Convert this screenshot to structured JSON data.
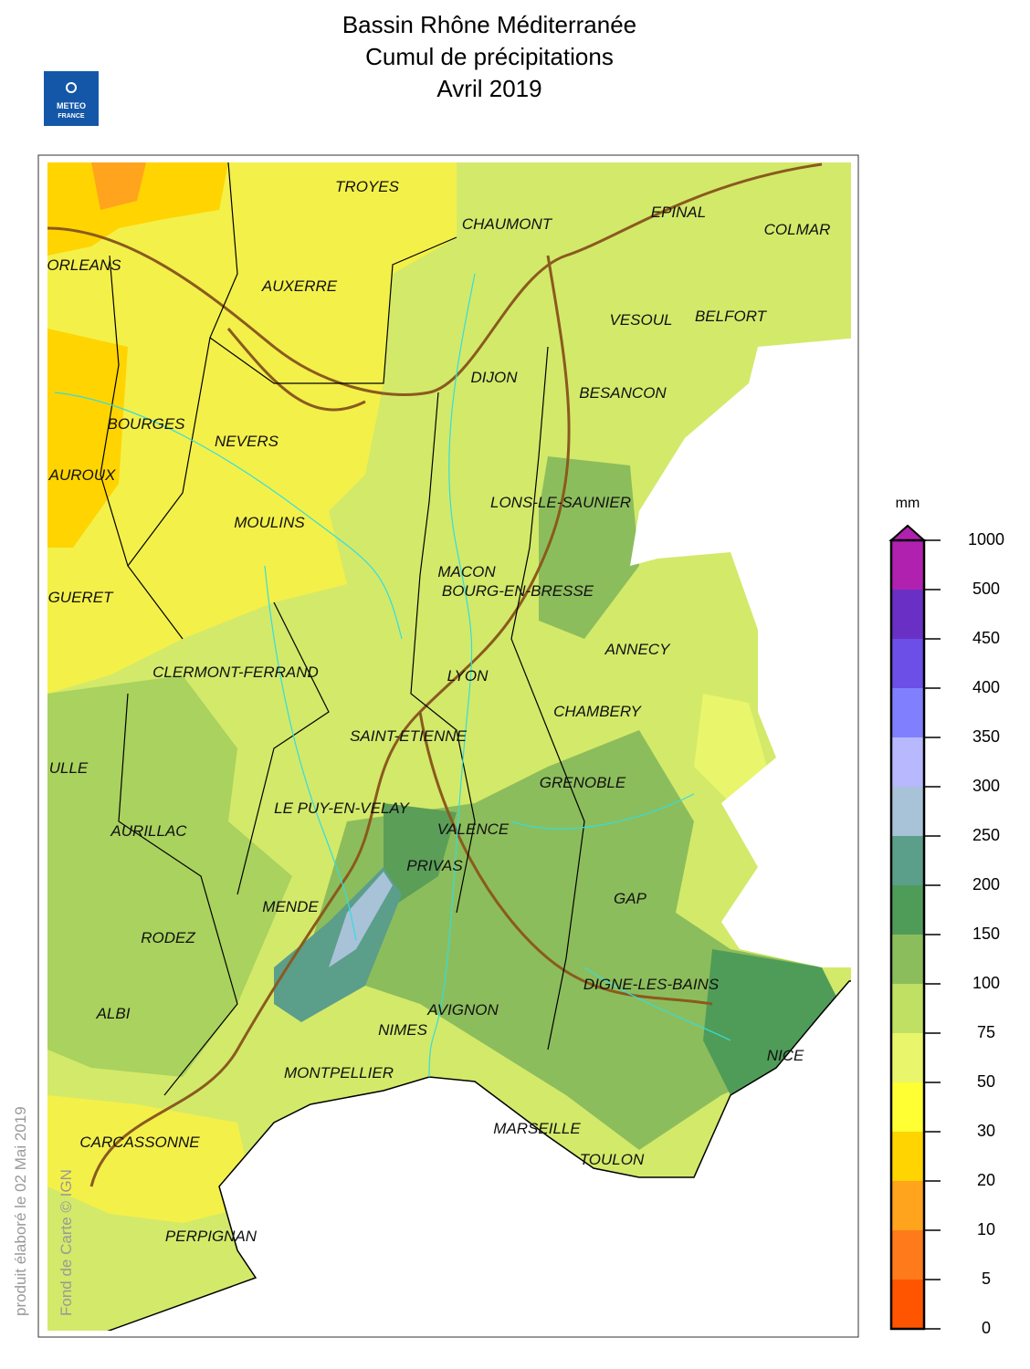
{
  "header": {
    "title_lines": [
      "Bassin Rhône Méditerranée",
      "Cumul de précipitations",
      "Avril 2019"
    ],
    "logo": [
      "METEO",
      "FRANCE"
    ]
  },
  "map": {
    "cities": [
      "TROYES",
      "CHAUMONT",
      "EPINAL",
      "COLMAR",
      "ORLEANS",
      "AUXERRE",
      "VESOUL",
      "BELFORT",
      "DIJON",
      "BESANCON",
      "BOURGES",
      "NEVERS",
      "AUROUX",
      "LONS-LE-SAUNIER",
      "MOULINS",
      "MACON",
      "BOURG-EN-BRESSE",
      "GUERET",
      "ANNECY",
      "CLERMONT-FERRAND",
      "LYON",
      "CHAMBERY",
      "SAINT-ETIENNE",
      "ULLE",
      "GRENOBLE",
      "LE PUY-EN-VELAY",
      "AURILLAC",
      "VALENCE",
      "PRIVAS",
      "GAP",
      "MENDE",
      "RODEZ",
      "DIGNE-LES-BAINS",
      "ALBI",
      "AVIGNON",
      "NIMES",
      "NICE",
      "MONTPELLIER",
      "MARSEILLE",
      "CARCASSONNE",
      "TOULON",
      "PERPIGNAN"
    ]
  },
  "legend": {
    "unit": "mm",
    "ticks": [
      0,
      5,
      10,
      20,
      30,
      50,
      75,
      100,
      150,
      200,
      250,
      300,
      350,
      400,
      450,
      500,
      1000
    ],
    "colors": [
      "#ff5500",
      "#ff7a1a",
      "#ffa41c",
      "#ffd400",
      "#ffff33",
      "#e9f56a",
      "#bfe062",
      "#8cbd5c",
      "#4f9c58",
      "#5b9e8a",
      "#a8c2d8",
      "#b8b8ff",
      "#8080ff",
      "#6b4fe6",
      "#6a30c6",
      "#b021b0"
    ]
  },
  "footer": {
    "produced": "produit élaboré le 02 Mai 2019",
    "credit": "Fond de Carte © IGN"
  }
}
